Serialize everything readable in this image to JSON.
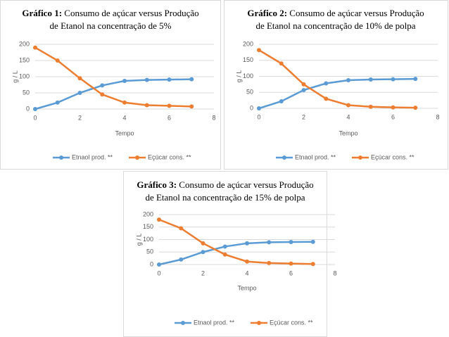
{
  "chart_data": [
    {
      "type": "line",
      "title_prefix": "Gráfico 1:",
      "title_lines": [
        "Consumo de açúcar versus Produção",
        "de Etanol na concentração de 5%"
      ],
      "x_label": "Tempo",
      "y_label": "g / L",
      "x": [
        0,
        1,
        2,
        3,
        4,
        5,
        6,
        7
      ],
      "xlim": [
        0,
        8
      ],
      "xticks": [
        0,
        2,
        4,
        6,
        8
      ],
      "ylim": [
        0,
        200
      ],
      "yticks": [
        0,
        50,
        100,
        150,
        200
      ],
      "grid": true,
      "series": [
        {
          "name": "Etnaol prod. **",
          "color": "#5b9bd5",
          "values": [
            0,
            20,
            50,
            73,
            87,
            90,
            91,
            92
          ]
        },
        {
          "name": "Eçúcar cons. **",
          "color": "#ed7d31",
          "values": [
            190,
            150,
            95,
            45,
            20,
            12,
            10,
            8
          ]
        }
      ]
    },
    {
      "type": "line",
      "title_prefix": "Gráfico 2:",
      "title_lines": [
        "Consumo de açúcar versus Produção",
        "de Etanol na concentração de 10% de polpa"
      ],
      "x_label": "Tempo",
      "y_label": "g / L",
      "x": [
        0,
        1,
        2,
        3,
        4,
        5,
        6,
        7
      ],
      "xlim": [
        0,
        8
      ],
      "xticks": [
        0,
        2,
        4,
        6,
        8
      ],
      "ylim": [
        0,
        200
      ],
      "yticks": [
        0,
        50,
        100,
        150,
        200
      ],
      "grid": true,
      "series": [
        {
          "name": "Etnaol prod. **",
          "color": "#5b9bd5",
          "values": [
            0,
            22,
            57,
            78,
            88,
            90,
            91,
            92
          ]
        },
        {
          "name": "Eçúcar cons. **",
          "color": "#ed7d31",
          "values": [
            182,
            140,
            75,
            30,
            10,
            5,
            3,
            2
          ]
        }
      ]
    },
    {
      "type": "line",
      "title_prefix": "Gráfico 3:",
      "title_lines": [
        "Consumo de açúcar versus Produção",
        "de Etanol na concentração de 15% de polpa"
      ],
      "x_label": "Tempo",
      "y_label": "g / L",
      "x": [
        0,
        1,
        2,
        3,
        4,
        5,
        6,
        7
      ],
      "xlim": [
        0,
        8
      ],
      "xticks": [
        0,
        2,
        4,
        6,
        8
      ],
      "ylim": [
        0,
        200
      ],
      "yticks": [
        0,
        50,
        100,
        150,
        200
      ],
      "grid": true,
      "series": [
        {
          "name": "Etnaol prod. **",
          "color": "#5b9bd5",
          "values": [
            0,
            20,
            50,
            72,
            85,
            89,
            90,
            91
          ]
        },
        {
          "name": "Eçúcar cons. **",
          "color": "#ed7d31",
          "values": [
            180,
            145,
            85,
            40,
            12,
            6,
            4,
            2
          ]
        }
      ]
    }
  ]
}
